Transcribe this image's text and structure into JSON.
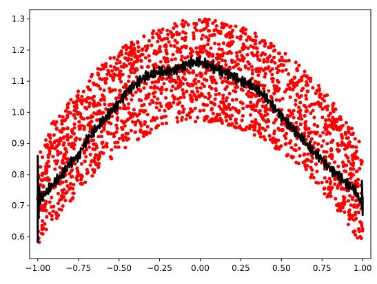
{
  "chart_data": {
    "type": "scatter",
    "title": "",
    "xlabel": "",
    "ylabel": "",
    "xlim": [
      -1.05,
      1.05
    ],
    "ylim": [
      0.53,
      1.33
    ],
    "grid": false,
    "x_ticks": [
      -1.0,
      -0.75,
      -0.5,
      -0.25,
      0.0,
      0.25,
      0.5,
      0.75,
      1.0
    ],
    "x_tick_labels": [
      "−1.00",
      "−0.75",
      "−0.50",
      "−0.25",
      "0.00",
      "0.25",
      "0.50",
      "0.75",
      "1.00"
    ],
    "y_ticks": [
      0.6,
      0.7,
      0.8,
      0.9,
      1.0,
      1.1,
      1.2,
      1.3
    ],
    "y_tick_labels": [
      "0.6",
      "0.7",
      "0.8",
      "0.9",
      "1.0",
      "1.1",
      "1.2",
      "1.3"
    ],
    "series": [
      {
        "kind": "scatter",
        "color": "#ff0000",
        "point_count": 2000,
        "envelope": {
          "lower": "1.0 - 0.4*x^2 (approx)",
          "upper": "1.3 - 0.4*x^2 (approx)"
        }
      },
      {
        "kind": "line",
        "color": "#000000",
        "x": [
          -1.0,
          -0.95,
          -0.9,
          -0.85,
          -0.8,
          -0.75,
          -0.7,
          -0.65,
          -0.6,
          -0.55,
          -0.5,
          -0.45,
          -0.4,
          -0.35,
          -0.3,
          -0.25,
          -0.2,
          -0.15,
          -0.1,
          -0.05,
          0.0,
          0.05,
          0.1,
          0.15,
          0.2,
          0.25,
          0.3,
          0.35,
          0.4,
          0.45,
          0.5,
          0.55,
          0.6,
          0.65,
          0.7,
          0.75,
          0.8,
          0.85,
          0.9,
          0.95,
          1.0
        ],
        "y": [
          0.71,
          0.74,
          0.77,
          0.8,
          0.84,
          0.86,
          0.91,
          0.94,
          0.97,
          1.0,
          1.03,
          1.07,
          1.09,
          1.11,
          1.12,
          1.13,
          1.13,
          1.14,
          1.15,
          1.16,
          1.16,
          1.15,
          1.14,
          1.13,
          1.12,
          1.1,
          1.09,
          1.07,
          1.05,
          1.02,
          0.99,
          0.96,
          0.93,
          0.9,
          0.87,
          0.85,
          0.82,
          0.8,
          0.77,
          0.75,
          0.7
        ]
      }
    ]
  }
}
